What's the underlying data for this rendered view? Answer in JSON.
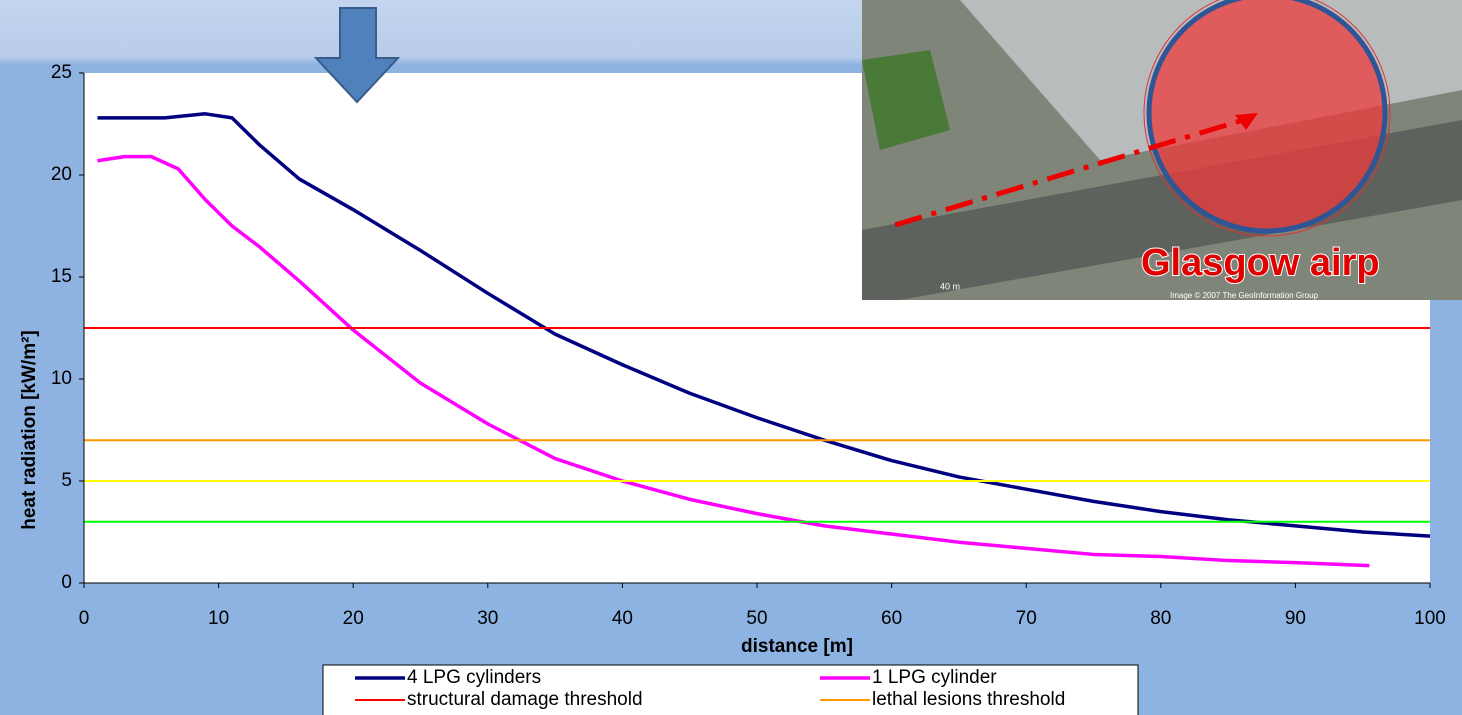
{
  "chart_data": {
    "type": "line",
    "x_label": "distance [m]",
    "y_label": "heat radiation [kW/m²]",
    "xlim": [
      0,
      100
    ],
    "xticks": [
      0,
      10,
      20,
      30,
      40,
      50,
      60,
      70,
      80,
      90,
      100
    ],
    "ylim": [
      0,
      25
    ],
    "yticks": [
      0,
      5,
      10,
      15,
      20,
      25
    ],
    "grid": false,
    "legend": "bottom",
    "series": [
      {
        "name": "4 LPG cylinders",
        "color": "#000080",
        "x": [
          1,
          6,
          9,
          11,
          13,
          16,
          20,
          25,
          30,
          35,
          40,
          45,
          50,
          55,
          60,
          65,
          70,
          75,
          80,
          85,
          90,
          95,
          100
        ],
        "values": [
          22.8,
          22.8,
          23,
          22.8,
          21.5,
          19.8,
          18.3,
          16.3,
          14.2,
          12.2,
          10.7,
          9.3,
          8.1,
          7.0,
          6.0,
          5.2,
          4.6,
          4.0,
          3.5,
          3.1,
          2.8,
          2.5,
          2.3
        ]
      },
      {
        "name": "1 LPG cylinder",
        "color": "#ff00ff",
        "x": [
          1,
          3,
          5,
          7,
          9,
          11,
          13,
          16,
          20,
          25,
          30,
          35,
          40,
          45,
          50,
          55,
          60,
          65,
          70,
          75,
          80,
          85,
          90,
          95.5
        ],
        "values": [
          20.7,
          20.9,
          20.9,
          20.3,
          18.8,
          17.5,
          16.5,
          14.8,
          12.4,
          9.8,
          7.8,
          6.1,
          5.0,
          4.1,
          3.4,
          2.8,
          2.4,
          2.0,
          1.7,
          1.4,
          1.3,
          1.1,
          1.0,
          0.85
        ]
      },
      {
        "name": "structural damage threshold",
        "color": "#ff0000",
        "x": [
          0,
          100
        ],
        "values": [
          12.5,
          12.5
        ]
      },
      {
        "name": "lethal lesions threshold",
        "color": "#ff9900",
        "x": [
          0,
          100
        ],
        "values": [
          7,
          7
        ]
      },
      {
        "color": "#ffff00",
        "x": [
          0,
          100
        ],
        "values": [
          5,
          5
        ]
      },
      {
        "color": "#00ff00",
        "x": [
          0,
          100
        ],
        "values": [
          3,
          3
        ]
      }
    ]
  },
  "photo": {
    "caption": "Glasgow airp",
    "scale": "40 m",
    "credit": "Image © 2007 The GeoInformation Group"
  }
}
